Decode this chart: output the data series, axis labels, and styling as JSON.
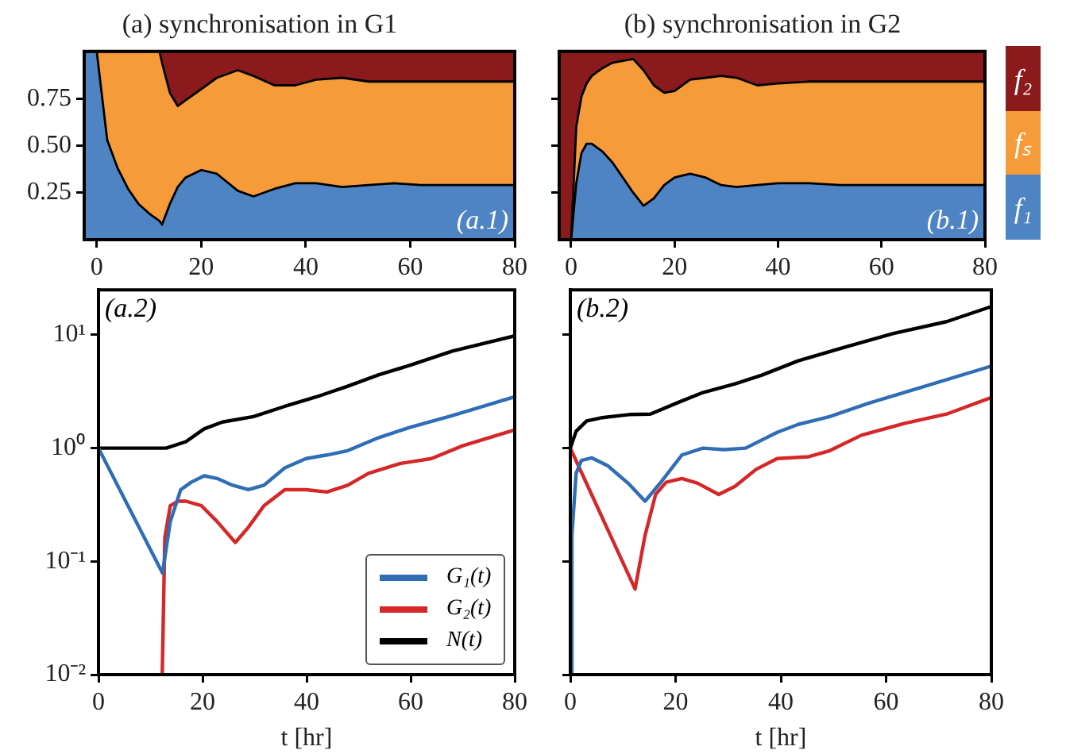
{
  "chart_data": [
    {
      "type": "area",
      "title": "(a) synchronisation in G1",
      "stacked": true,
      "marker": "none",
      "grid": false,
      "x": [
        -2.4,
        0,
        2,
        4,
        6,
        8,
        10,
        12,
        12.5,
        14,
        15.5,
        17,
        20,
        23,
        27,
        30,
        34,
        38,
        42,
        47,
        52,
        57,
        62,
        70,
        80
      ],
      "series": [
        {
          "color": "#4e84c4",
          "values": [
            1,
            1,
            0.53,
            0.38,
            0.27,
            0.19,
            0.14,
            0.1,
            0.08,
            0.19,
            0.28,
            0.33,
            0.37,
            0.35,
            0.26,
            0.23,
            0.27,
            0.3,
            0.3,
            0.28,
            0.29,
            0.3,
            0.29,
            0.29,
            0.29
          ]
        },
        {
          "color": "#f59b3a",
          "values": [
            0,
            0,
            0.47,
            0.62,
            0.73,
            0.81,
            0.86,
            0.9,
            0.86,
            0.59,
            0.43,
            0.41,
            0.43,
            0.51,
            0.64,
            0.64,
            0.55,
            0.52,
            0.55,
            0.58,
            0.55,
            0.54,
            0.55,
            0.55,
            0.55
          ]
        },
        {
          "color": "#8b1a1d",
          "values": [
            0,
            0,
            0,
            0,
            0,
            0,
            0,
            0,
            0.06,
            0.22,
            0.29,
            0.26,
            0.2,
            0.14,
            0.1,
            0.13,
            0.18,
            0.18,
            0.15,
            0.14,
            0.16,
            0.16,
            0.16,
            0.16,
            0.16
          ]
        }
      ],
      "xlim": [
        -2.4,
        80
      ],
      "xticks": [
        0,
        20,
        40,
        60,
        80
      ],
      "ylim": [
        0,
        1
      ],
      "yticks": [
        0.25,
        {
          "value": 0.5,
          "label": "0.50"
        },
        0.75
      ],
      "annotations": [
        "(a.1)"
      ]
    },
    {
      "type": "area",
      "title": "(b) synchronisation in G2",
      "stacked": true,
      "marker": "none",
      "grid": false,
      "legend": "right",
      "tick_labels": "x",
      "x": [
        -2.3,
        0,
        1,
        2,
        3,
        4,
        6,
        8,
        10,
        12,
        14,
        16,
        18,
        20,
        23,
        26,
        29,
        32,
        36,
        40,
        46,
        52,
        60,
        70,
        80
      ],
      "series": [
        {
          "name": "f₁",
          "color": "#4e84c4",
          "values": [
            0,
            0,
            0.3,
            0.46,
            0.51,
            0.51,
            0.47,
            0.41,
            0.33,
            0.25,
            0.18,
            0.22,
            0.29,
            0.33,
            0.35,
            0.33,
            0.29,
            0.28,
            0.29,
            0.3,
            0.3,
            0.29,
            0.29,
            0.29,
            0.29
          ]
        },
        {
          "name": "fₛ",
          "color": "#f59b3a",
          "values": [
            0,
            0,
            0.3,
            0.3,
            0.32,
            0.36,
            0.44,
            0.53,
            0.62,
            0.71,
            0.72,
            0.6,
            0.49,
            0.46,
            0.5,
            0.53,
            0.58,
            0.58,
            0.53,
            0.53,
            0.54,
            0.55,
            0.55,
            0.55,
            0.55
          ]
        },
        {
          "name": "f₂",
          "color": "#8b1a1d",
          "values": [
            1,
            1,
            0.4,
            0.24,
            0.17,
            0.13,
            0.09,
            0.06,
            0.05,
            0.04,
            0.1,
            0.18,
            0.22,
            0.21,
            0.15,
            0.14,
            0.13,
            0.14,
            0.18,
            0.17,
            0.16,
            0.16,
            0.16,
            0.16,
            0.16
          ]
        }
      ],
      "xlim": [
        -2.3,
        80
      ],
      "xticks": [
        0,
        20,
        40,
        60,
        80
      ],
      "ylim": [
        0,
        1
      ],
      "yticks": [
        {
          "value": 0.25,
          "label": null
        },
        {
          "value": 0.5,
          "label": null
        },
        {
          "value": 0.75,
          "label": null
        }
      ],
      "annotations": [
        "(b.1)"
      ]
    },
    {
      "type": "line",
      "xlabel": "t [hr]",
      "log": true,
      "marker": "none",
      "grid": false,
      "legend": "bottom right",
      "series": [
        {
          "name": "G₁(t)",
          "color": "#2f6db5",
          "x": [
            0,
            12.3,
            13.8,
            15.8,
            17.8,
            20.3,
            22.8,
            25.8,
            28.8,
            31.8,
            35.8,
            39.9,
            43.9,
            47.9,
            53.9,
            59.9,
            68,
            80
          ],
          "values": [
            1,
            0.079,
            0.225,
            0.43,
            0.5,
            0.57,
            0.54,
            0.47,
            0.43,
            0.47,
            0.67,
            0.81,
            0.87,
            0.95,
            1.24,
            1.53,
            1.94,
            2.84
          ]
        },
        {
          "name": "G₂(t)",
          "color": "#d62728",
          "x": [
            12.25,
            12.75,
            13.8,
            15.3,
            16.8,
            19.8,
            22.8,
            26.3,
            28.8,
            31.8,
            35.8,
            39.9,
            43.9,
            47.9,
            51.9,
            57.9,
            64,
            70,
            80
          ],
          "values": [
            0.01,
            0.163,
            0.31,
            0.34,
            0.34,
            0.31,
            0.225,
            0.147,
            0.2,
            0.31,
            0.43,
            0.43,
            0.41,
            0.47,
            0.6,
            0.73,
            0.81,
            1.05,
            1.45
          ]
        },
        {
          "name": "N(t)",
          "color": "#000000",
          "x": [
            0,
            13,
            16.8,
            20.3,
            23.8,
            29.8,
            35.8,
            41.9,
            47.9,
            53.9,
            59.9,
            68,
            80
          ],
          "values": [
            1,
            1,
            1.14,
            1.48,
            1.7,
            1.9,
            2.34,
            2.84,
            3.52,
            4.45,
            5.4,
            7.2,
            9.8
          ]
        }
      ],
      "xlim": [
        0,
        80
      ],
      "xticks": [
        0,
        20,
        40,
        60,
        80
      ],
      "ylim": [
        0.01,
        25
      ],
      "yticks": [
        {
          "value": 0.01,
          "label": "10⁻²"
        },
        {
          "value": 0.1,
          "label": "10⁻¹"
        },
        {
          "value": 1,
          "label": "10⁰"
        },
        {
          "value": 10,
          "label": "10¹"
        }
      ],
      "annotations": [
        "(a.2)"
      ]
    },
    {
      "type": "line",
      "xlabel": "t [hr]",
      "log": true,
      "marker": "none",
      "grid": false,
      "tick_labels": "x",
      "series": [
        {
          "color": "#2f6db5",
          "x": [
            0,
            0.3,
            1.1,
            2.1,
            4.1,
            7.1,
            11.2,
            14.2,
            17.2,
            21.2,
            25.2,
            29.2,
            33.3,
            39.3,
            43.3,
            49.3,
            56.4,
            63.4,
            80
          ],
          "values": [
            0.01,
            0.17,
            0.6,
            0.78,
            0.82,
            0.7,
            0.48,
            0.34,
            0.5,
            0.87,
            1.0,
            0.97,
            1.0,
            1.38,
            1.62,
            1.9,
            2.47,
            3.1,
            5.3
          ]
        },
        {
          "color": "#d62728",
          "x": [
            0,
            12.3,
            14.2,
            16.2,
            18.2,
            21.2,
            24.2,
            28.2,
            31.3,
            35.3,
            39.3,
            45.3,
            49.3,
            55.3,
            63.4,
            71.5,
            80
          ],
          "values": [
            1,
            0.057,
            0.17,
            0.39,
            0.5,
            0.54,
            0.49,
            0.39,
            0.46,
            0.65,
            0.81,
            0.84,
            0.95,
            1.3,
            1.65,
            2.0,
            2.8
          ]
        },
        {
          "color": "#000000",
          "x": [
            0,
            1.1,
            3.1,
            6.1,
            11.2,
            15.2,
            20.2,
            25.2,
            31.3,
            36.3,
            43.3,
            51.4,
            61.4,
            71.5,
            80
          ],
          "values": [
            1,
            1.41,
            1.74,
            1.86,
            1.98,
            2.0,
            2.5,
            3.1,
            3.7,
            4.4,
            5.9,
            7.6,
            10.3,
            13.1,
            17.8
          ]
        }
      ],
      "xlim": [
        0,
        80
      ],
      "xticks": [
        0,
        20,
        40,
        60,
        80
      ],
      "ylim": [
        0.01,
        25
      ],
      "yticks": [
        {
          "value": 0.01,
          "label": null
        },
        {
          "value": 0.1,
          "label": null
        },
        {
          "value": 1,
          "label": null
        },
        {
          "value": 10,
          "label": null
        }
      ],
      "annotations": [
        "(b.2)"
      ]
    }
  ]
}
